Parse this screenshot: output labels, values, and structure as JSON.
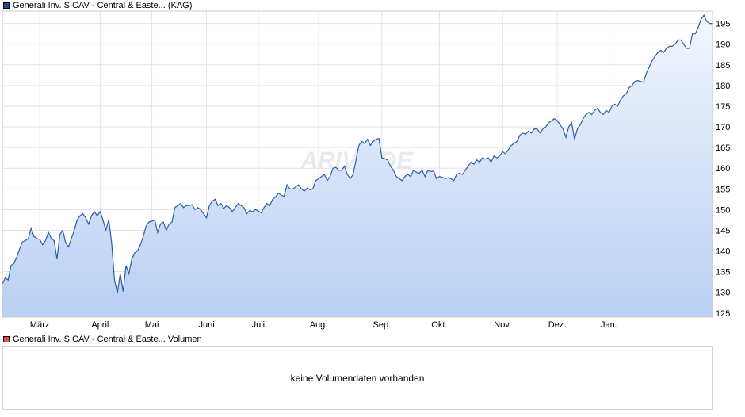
{
  "legend": {
    "price_label": "Generali Inv. SICAV - Central & Easte... (KAG)",
    "price_color": "#1f4e9c",
    "volume_label": "Generali Inv. SICAV - Central & Easte... Volumen",
    "volume_color": "#d9534f"
  },
  "watermark": "ARIVA.DE",
  "volume_panel": {
    "message": "keine Volumendaten vorhanden"
  },
  "chart_data": {
    "type": "area",
    "y_axis_position": "right",
    "ylim": [
      124,
      198
    ],
    "yticks": [
      125,
      130,
      135,
      140,
      145,
      150,
      155,
      160,
      165,
      170,
      175,
      180,
      185,
      190,
      195
    ],
    "xticks": [
      {
        "label": "März",
        "index": 13
      },
      {
        "label": "April",
        "index": 34
      },
      {
        "label": "Mai",
        "index": 52
      },
      {
        "label": "Juni",
        "index": 71
      },
      {
        "label": "Juli",
        "index": 89
      },
      {
        "label": "Aug.",
        "index": 110
      },
      {
        "label": "Sep.",
        "index": 132
      },
      {
        "label": "Okt.",
        "index": 152
      },
      {
        "label": "Nov.",
        "index": 174
      },
      {
        "label": "Dez.",
        "index": 193
      },
      {
        "label": "Jan.",
        "index": 211
      }
    ],
    "grid": true,
    "line_color": "#2a5caa",
    "fill_top_color": "#f2f6fd",
    "fill_bottom_color": "#b9d0f3",
    "values": [
      132,
      133.5,
      133,
      136.5,
      137,
      138.5,
      140.5,
      142.2,
      142.5,
      143,
      145.5,
      143.5,
      143,
      142.8,
      141.5,
      142.5,
      144.5,
      143,
      142.5,
      138,
      144,
      145,
      142,
      141,
      143,
      145,
      147.5,
      148.5,
      149,
      148,
      146.5,
      148.5,
      149.5,
      148.5,
      149.5,
      147.5,
      145,
      147.5,
      142,
      133,
      129.8,
      134.5,
      130.2,
      136.5,
      134.5,
      138,
      139.5,
      140,
      141.5,
      143.5,
      146,
      147,
      147.2,
      147.5,
      144.5,
      146.5,
      147,
      145,
      146.5,
      147,
      150.5,
      151,
      151.5,
      150.5,
      151,
      151,
      151.2,
      150,
      150.5,
      150,
      149,
      148,
      151,
      152,
      152.5,
      151,
      151.5,
      150.3,
      151,
      150.5,
      149.5,
      150.5,
      151.5,
      151,
      150.5,
      149,
      149.8,
      149.5,
      150,
      149.7,
      149.2,
      150.5,
      151.5,
      151,
      152.5,
      153,
      154,
      153.5,
      153.2,
      156,
      155,
      155,
      155.5,
      156,
      155,
      154.5,
      155.2,
      154.8,
      155,
      157,
      157.5,
      158,
      158.5,
      157,
      158,
      160,
      160.2,
      159.5,
      159.5,
      160.5,
      158.5,
      157.5,
      158.5,
      162,
      165.5,
      166.5,
      166,
      167,
      165.5,
      166.5,
      167,
      167.2,
      162.5,
      162.3,
      162,
      160.5,
      159.5,
      158,
      157.5,
      157,
      158,
      158.5,
      158,
      159.5,
      159,
      158.8,
      159.5,
      158,
      159.5,
      159.2,
      159.3,
      157.5,
      158,
      157.8,
      157.5,
      157.7,
      157.5,
      157,
      158.5,
      158.8,
      158.5,
      159.5,
      160.5,
      161.5,
      161,
      162,
      161.5,
      162.5,
      162.2,
      162.5,
      161.5,
      163,
      162.5,
      163,
      164,
      163.5,
      164.5,
      165.5,
      166,
      166.5,
      168,
      168.5,
      168.2,
      169,
      168.5,
      169.5,
      169.5,
      168.5,
      169.5,
      170,
      171,
      171.5,
      172,
      171.5,
      170.5,
      169.5,
      167.5,
      170,
      171,
      167,
      169.5,
      170.5,
      172,
      173,
      173.5,
      173,
      174,
      174.5,
      173.5,
      173,
      174,
      173.5,
      175,
      175.5,
      175,
      176.5,
      177.5,
      178,
      179.5,
      180,
      181,
      181.2,
      181,
      180.8,
      183,
      184.5,
      186,
      187,
      188,
      188.5,
      188,
      189,
      189.5,
      189.5,
      190,
      191,
      191,
      190,
      189,
      189,
      192.5,
      192.5,
      194,
      196,
      197,
      195.5,
      195,
      195
    ]
  }
}
